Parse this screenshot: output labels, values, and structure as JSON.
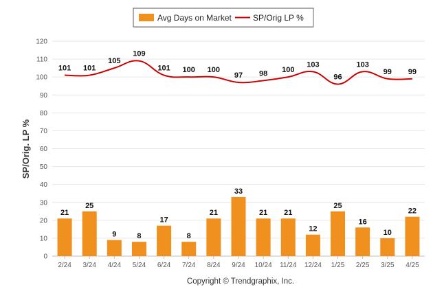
{
  "chart_data": {
    "type": "bar",
    "categories": [
      "2/24",
      "3/24",
      "4/24",
      "5/24",
      "6/24",
      "7/24",
      "8/24",
      "9/24",
      "10/24",
      "11/24",
      "12/24",
      "1/25",
      "2/25",
      "3/25",
      "4/25"
    ],
    "series": [
      {
        "name": "Avg Days on Market",
        "type": "bar",
        "color": "#F0901E",
        "values": [
          21,
          25,
          9,
          8,
          17,
          8,
          21,
          33,
          21,
          21,
          12,
          25,
          16,
          10,
          22
        ]
      },
      {
        "name": "SP/Orig LP %",
        "type": "line",
        "color": "#CC0000",
        "values": [
          101,
          101,
          105,
          109,
          101,
          100,
          100,
          97,
          98,
          100,
          103,
          96,
          103,
          99,
          99
        ]
      }
    ],
    "ylabel": "SP/Orig. LP %",
    "xlabel": "",
    "ylim": [
      0,
      120
    ],
    "yticks": [
      0,
      10,
      20,
      30,
      40,
      50,
      60,
      70,
      80,
      90,
      100,
      110,
      120
    ],
    "grid": true,
    "legend_position": "top-center"
  },
  "footer": "Copyright © Trendgraphix, Inc."
}
